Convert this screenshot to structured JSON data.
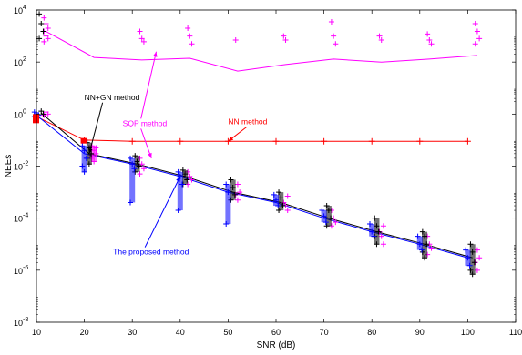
{
  "chart_data": {
    "type": "line",
    "title": "",
    "xlabel": "SNR (dB)",
    "ylabel": "NEEs",
    "xlim": [
      10,
      110
    ],
    "ylim_log10": [
      -8,
      4
    ],
    "y_scale": "log",
    "grid": false,
    "x_ticks": [
      "10",
      "20",
      "30",
      "40",
      "50",
      "60",
      "70",
      "80",
      "90",
      "100",
      "110"
    ],
    "y_tick_bases": [
      "10",
      "10",
      "10",
      "10",
      "10",
      "10",
      "10"
    ],
    "y_tick_exponents": [
      "-8",
      "-6",
      "-4",
      "-2",
      "0",
      "2",
      "4"
    ],
    "series": [
      {
        "name": "SQP method",
        "color": "#ff00ff",
        "x": [
          12,
          22,
          32,
          42,
          52,
          62,
          72,
          82,
          92,
          102
        ],
        "y": [
          1500,
          150,
          120,
          140,
          45,
          80,
          130,
          100,
          130,
          180
        ]
      },
      {
        "name": "NN method",
        "color": "#ff0000",
        "x": [
          10,
          20,
          30,
          40,
          50,
          60,
          70,
          80,
          90,
          100
        ],
        "y": [
          0.8,
          0.1,
          0.09,
          0.09,
          0.09,
          0.09,
          0.09,
          0.09,
          0.09,
          0.09
        ]
      },
      {
        "name": "NN+GN method",
        "color": "#000000",
        "x": [
          11,
          21,
          31,
          41,
          51,
          61,
          71,
          81,
          91,
          101
        ],
        "y": [
          1.1,
          0.03,
          0.012,
          0.004,
          0.001,
          0.0004,
          0.0001,
          3e-05,
          1e-05,
          3e-06
        ]
      },
      {
        "name": "The proposed method",
        "color": "#0000ff",
        "x": [
          10,
          20,
          30,
          40,
          50,
          60,
          70,
          80,
          90,
          100
        ],
        "y": [
          0.9,
          0.03,
          0.012,
          0.004,
          0.001,
          0.0004,
          0.0001,
          3e-05,
          1e-05,
          3e-06
        ]
      }
    ],
    "scatter_clusters": [
      {
        "name": "SQP method",
        "color": "#ff00ff",
        "x": 12,
        "y_samples": [
          5000,
          3000,
          2000,
          1500,
          1000,
          800,
          600,
          1.2,
          1.0,
          0.9
        ]
      },
      {
        "name": "SQP method",
        "color": "#ff00ff",
        "x": 22,
        "y_samples": [
          0.06,
          0.04,
          0.03,
          0.02,
          0.015,
          0.05,
          0.025
        ]
      },
      {
        "name": "SQP method",
        "color": "#ff00ff",
        "x": 32,
        "y_samples": [
          1500,
          800,
          600,
          0.02,
          0.012,
          0.008,
          0.005
        ]
      },
      {
        "name": "SQP method",
        "color": "#ff00ff",
        "x": 42,
        "y_samples": [
          2000,
          1000,
          500,
          0.006,
          0.004,
          0.003,
          0.002
        ]
      },
      {
        "name": "SQP method",
        "color": "#ff00ff",
        "x": 52,
        "y_samples": [
          700,
          0.002,
          0.001,
          0.0008,
          0.0005
        ]
      },
      {
        "name": "SQP method",
        "color": "#ff00ff",
        "x": 62,
        "y_samples": [
          1000,
          700,
          0.0007,
          0.0004,
          0.0003,
          0.0002
        ]
      },
      {
        "name": "SQP method",
        "color": "#ff00ff",
        "x": 72,
        "y_samples": [
          3500,
          1000,
          500,
          0.0002,
          0.0001,
          7e-05,
          5e-05
        ]
      },
      {
        "name": "SQP method",
        "color": "#ff00ff",
        "x": 82,
        "y_samples": [
          1000,
          700,
          5e-05,
          3e-05,
          2e-05,
          1e-05
        ]
      },
      {
        "name": "SQP method",
        "color": "#ff00ff",
        "x": 92,
        "y_samples": [
          1200,
          700,
          500,
          2e-05,
          1e-05,
          7e-06,
          4e-06
        ]
      },
      {
        "name": "SQP method",
        "color": "#ff00ff",
        "x": 102,
        "y_samples": [
          3000,
          1500,
          800,
          500,
          6e-06,
          3e-06,
          2e-06,
          1e-06
        ]
      },
      {
        "name": "NN+GN method",
        "color": "#000000",
        "x": 11,
        "y_samples": [
          7000,
          3000,
          1500,
          800,
          1.3,
          1.0
        ]
      },
      {
        "name": "NN+GN method",
        "color": "#000000",
        "x": 21,
        "y_samples": [
          0.08,
          0.05,
          0.03,
          0.02,
          0.012
        ]
      },
      {
        "name": "NN+GN method",
        "color": "#000000",
        "x": 31,
        "y_samples": [
          0.025,
          0.015,
          0.01,
          0.006
        ]
      },
      {
        "name": "NN+GN method",
        "color": "#000000",
        "x": 41,
        "y_samples": [
          0.007,
          0.005,
          0.003,
          0.002
        ]
      },
      {
        "name": "NN+GN method",
        "color": "#000000",
        "x": 51,
        "y_samples": [
          0.003,
          0.0015,
          0.0008,
          0.0005
        ]
      },
      {
        "name": "NN+GN method",
        "color": "#000000",
        "x": 61,
        "y_samples": [
          0.001,
          0.0006,
          0.0003,
          0.0002
        ]
      },
      {
        "name": "NN+GN method",
        "color": "#000000",
        "x": 71,
        "y_samples": [
          0.0003,
          0.0002,
          0.0001,
          5e-05
        ]
      },
      {
        "name": "NN+GN method",
        "color": "#000000",
        "x": 81,
        "y_samples": [
          0.0001,
          5e-05,
          3e-05,
          2e-05,
          1e-05
        ]
      },
      {
        "name": "NN+GN method",
        "color": "#000000",
        "x": 91,
        "y_samples": [
          3e-05,
          2e-05,
          1e-05,
          5e-06,
          3e-06
        ]
      },
      {
        "name": "NN+GN method",
        "color": "#000000",
        "x": 101,
        "y_samples": [
          1e-05,
          5e-06,
          2e-06,
          1e-06,
          7e-07
        ]
      },
      {
        "name": "The proposed method",
        "color": "#0000ff",
        "x": 10,
        "y_samples": [
          1.2,
          1.0,
          0.9,
          0.8
        ]
      },
      {
        "name": "The proposed method",
        "color": "#0000ff",
        "x": 20,
        "y_samples": [
          0.06,
          0.04,
          0.02,
          0.01,
          0.006
        ]
      },
      {
        "name": "The proposed method",
        "color": "#0000ff",
        "x": 30,
        "y_samples": [
          0.02,
          0.012,
          0.008,
          0.0004
        ]
      },
      {
        "name": "The proposed method",
        "color": "#0000ff",
        "x": 40,
        "y_samples": [
          0.006,
          0.004,
          0.002,
          0.0002
        ]
      },
      {
        "name": "The proposed method",
        "color": "#0000ff",
        "x": 50,
        "y_samples": [
          0.002,
          0.001,
          0.0006,
          6e-05
        ]
      },
      {
        "name": "The proposed method",
        "color": "#0000ff",
        "x": 60,
        "y_samples": [
          0.0008,
          0.0005,
          0.0003
        ]
      },
      {
        "name": "The proposed method",
        "color": "#0000ff",
        "x": 70,
        "y_samples": [
          0.0002,
          0.00012,
          7e-05
        ]
      },
      {
        "name": "The proposed method",
        "color": "#0000ff",
        "x": 80,
        "y_samples": [
          6e-05,
          3e-05,
          2e-05
        ]
      },
      {
        "name": "The proposed method",
        "color": "#0000ff",
        "x": 90,
        "y_samples": [
          2e-05,
          1e-05,
          6e-06
        ]
      },
      {
        "name": "The proposed method",
        "color": "#0000ff",
        "x": 100,
        "y_samples": [
          6e-06,
          3e-06,
          1.5e-06
        ]
      }
    ],
    "nn_markers": {
      "name": "NN method",
      "color": "#ff0000",
      "x": [
        10,
        20,
        30,
        40,
        50,
        60,
        70,
        80,
        90,
        100
      ],
      "y": [
        0.8,
        0.1,
        0.09,
        0.09,
        0.09,
        0.09,
        0.09,
        0.09,
        0.09,
        0.09
      ]
    },
    "annotations": [
      {
        "text": "NN+GN method",
        "color": "#000000",
        "x_label": 20,
        "y_label": 3.5,
        "x_arrow": 21,
        "y_arrow": 0.03
      },
      {
        "text": "SQP method",
        "color": "#ff00ff",
        "x_label": 28,
        "y_label": 0.35,
        "x_arrow_1": 35,
        "y_arrow_1": 250,
        "x_arrow_2": 34,
        "y_arrow_2": 0.02
      },
      {
        "text": "NN method",
        "color": "#ff0000",
        "x_label": 50,
        "y_label": 0.4,
        "x_arrow": 50,
        "y_arrow": 0.09
      },
      {
        "text": "The proposed method",
        "color": "#0000ff",
        "x_label": 26,
        "y_label": 4e-06,
        "x_arrow": 40,
        "y_arrow": 0.004
      }
    ]
  }
}
